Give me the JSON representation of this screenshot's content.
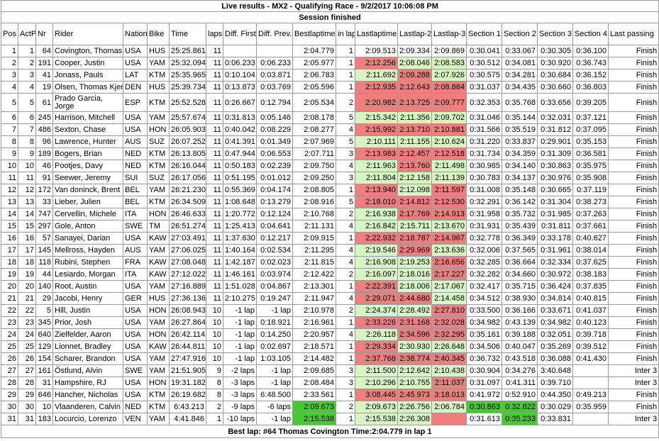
{
  "title": "Live results - MX2 - Qualifying Race - 9/2/2017 10:06:08 PM",
  "status": "Session finished",
  "footer": "Best lap: #64 Thomas Covington Time:2:04.779 in lap 1",
  "colors": {
    "red": "#ef7f7f",
    "green": "#d8f5c4",
    "dark_green": "#44cc2e"
  },
  "columns": [
    "Pos",
    "ActP",
    "Nr",
    "Rider",
    "Nation",
    "Bike",
    "Time",
    "laps",
    "Diff. First",
    "Diff. Prev.",
    "Bestlaptime",
    "in lap",
    "Lastlaptime",
    "Lastlap-2",
    "Lastlap-3",
    "Section 1",
    "Section 2",
    "Section 3",
    "Section 4",
    "Last passing"
  ],
  "rows": [
    {
      "c": [
        "1",
        "1",
        "64",
        "Covington, Thomas",
        "USA",
        "HUS",
        "25:25.861",
        "11",
        "",
        "",
        "2:04.779",
        "1",
        "2:09.513",
        "2:09.334",
        "2:09.869",
        "0:30.041",
        "0:33.067",
        "0:30.305",
        "0:36.100",
        "Finish"
      ],
      "k": {}
    },
    {
      "c": [
        "2",
        "2",
        "191",
        "Cooper, Justin",
        "USA",
        "YAM",
        "25:32.094",
        "11",
        "0:06.233",
        "0:06.233",
        "2:05.977",
        "1",
        "2:12.256",
        "2:08.046",
        "2:08.583",
        "0:30.512",
        "0:34.081",
        "0:30.920",
        "0:36.743",
        "Finish"
      ],
      "k": {
        "12": "red",
        "13": "green",
        "14": "green"
      }
    },
    {
      "c": [
        "3",
        "3",
        "41",
        "Jonass, Pauls",
        "LAT",
        "KTM",
        "25:35.965",
        "11",
        "0:10.104",
        "0:03.871",
        "2:06.783",
        "1",
        "2:11.692",
        "2:09.288",
        "2:07.926",
        "0:30.575",
        "0:34.281",
        "0:30.684",
        "0:36.152",
        "Finish"
      ],
      "k": {
        "12": "green",
        "13": "red",
        "14": "green"
      }
    },
    {
      "c": [
        "4",
        "4",
        "19",
        "Olsen, Thomas Kjer",
        "DEN",
        "HUS",
        "25:39.734",
        "11",
        "0:13.873",
        "0:03.769",
        "2:05.596",
        "1",
        "2:12.935",
        "2:12.643",
        "2:08.884",
        "0:31.037",
        "0:34.435",
        "0:30.660",
        "0:36.803",
        "Finish"
      ],
      "k": {
        "12": "red",
        "13": "red",
        "14": "red"
      }
    },
    {
      "c": [
        "5",
        "5",
        "61",
        "Prado Garcia, Jorge",
        "ESP",
        "KTM",
        "25:52.528",
        "11",
        "0:26.667",
        "0:12.794",
        "2:05.534",
        "2",
        "2:20.982",
        "2:13.725",
        "2:09.777",
        "0:32.353",
        "0:35.768",
        "0:33.656",
        "0:39.205",
        "Finish"
      ],
      "k": {
        "12": "red",
        "13": "red",
        "14": "red"
      },
      "tall": true
    },
    {
      "c": [
        "6",
        "6",
        "245",
        "Harrison, Mitchell",
        "USA",
        "YAM",
        "25:57.674",
        "11",
        "0:31.813",
        "0:05.146",
        "2:08.178",
        "5",
        "2:15.342",
        "2:11.356",
        "2:09.702",
        "0:31.046",
        "0:35.144",
        "0:32.031",
        "0:37.121",
        "Finish"
      ],
      "k": {
        "12": "green",
        "13": "green",
        "14": "green"
      }
    },
    {
      "c": [
        "7",
        "7",
        "486",
        "Sexton, Chase",
        "USA",
        "HON",
        "26:05.903",
        "11",
        "0:40.042",
        "0:08.229",
        "2:08.277",
        "4",
        "2:15.992",
        "2:13.710",
        "2:10.881",
        "0:31.566",
        "0:35.519",
        "0:31.812",
        "0:37.095",
        "Finish"
      ],
      "k": {
        "12": "red",
        "13": "red",
        "14": "red"
      }
    },
    {
      "c": [
        "8",
        "8",
        "96",
        "Lawrence, Hunter",
        "AUS",
        "SUZ",
        "26:07.252",
        "11",
        "0:41.391",
        "0:01.349",
        "2:07.969",
        "5",
        "2:10.111",
        "2:11.155",
        "2:10.624",
        "0:31.220",
        "0:33.837",
        "0:29.901",
        "0:35.153",
        "Finish"
      ],
      "k": {
        "12": "green",
        "13": "green",
        "14": "green"
      }
    },
    {
      "c": [
        "9",
        "9",
        "189",
        "Bogers, Brian",
        "NED",
        "KTM",
        "26:13.805",
        "11",
        "0:47.944",
        "0:06.553",
        "2:07.711",
        "3",
        "2:13.983",
        "2:12.457",
        "2:12.518",
        "0:31.734",
        "0:34.359",
        "0:31.309",
        "0:36.581",
        "Finish"
      ],
      "k": {
        "12": "red",
        "13": "red",
        "14": "red"
      }
    },
    {
      "c": [
        "10",
        "10",
        "46",
        "Pootjes, Davy",
        "NED",
        "KTM",
        "26:16.044",
        "11",
        "0:50.183",
        "0:02.239",
        "2:09.750",
        "4",
        "2:11.963",
        "2:13.760",
        "2:11.498",
        "0:30.985",
        "0:34.140",
        "0:30.863",
        "0:35.975",
        "Finish"
      ],
      "k": {
        "12": "green",
        "13": "red",
        "14": "green"
      }
    },
    {
      "c": [
        "11",
        "11",
        "91",
        "Seewer, Jeremy",
        "SUI",
        "SUZ",
        "26:17.056",
        "11",
        "0:51.195",
        "0:01.012",
        "2:09.250",
        "3",
        "2:11.804",
        "2:12.158",
        "2:11.139",
        "0:30.783",
        "0:34.137",
        "0:30.976",
        "0:35.908",
        "Finish"
      ],
      "k": {
        "12": "green",
        "13": "green",
        "14": "green"
      }
    },
    {
      "c": [
        "12",
        "12",
        "172",
        "Van doninck, Brent",
        "BEL",
        "YAM",
        "26:21.230",
        "11",
        "0:55.369",
        "0:04.174",
        "2:08.805",
        "1",
        "2:13.940",
        "2:12.098",
        "2:11.597",
        "0:31.008",
        "0:35.148",
        "0:30.665",
        "0:37.119",
        "Finish"
      ],
      "k": {
        "12": "red",
        "13": "green",
        "14": "red"
      }
    },
    {
      "c": [
        "13",
        "13",
        "33",
        "Lieber, Julien",
        "BEL",
        "KTM",
        "26:34.509",
        "11",
        "1:08.648",
        "0:13.279",
        "2:08.916",
        "5",
        "2:18.010",
        "2:14.812",
        "2:12.530",
        "0:32.291",
        "0:36.142",
        "0:31.304",
        "0:38.273",
        "Finish"
      ],
      "k": {
        "12": "red",
        "13": "red",
        "14": "red"
      }
    },
    {
      "c": [
        "14",
        "14",
        "747",
        "Cervellin, Michele",
        "ITA",
        "HON",
        "26:46.633",
        "11",
        "1:20.772",
        "0:12.124",
        "2:10.768",
        "2",
        "2:16.938",
        "2:17.769",
        "2:14.913",
        "0:31.958",
        "0:35.732",
        "0:31.985",
        "0:37.263",
        "Finish"
      ],
      "k": {
        "12": "green",
        "13": "red",
        "14": "red"
      }
    },
    {
      "c": [
        "15",
        "15",
        "297",
        "Gole, Anton",
        "SWE",
        "TM",
        "26:51.274",
        "11",
        "1:25.413",
        "0:04.641",
        "2:11.131",
        "4",
        "2:16.842",
        "2:15.711",
        "2:13.670",
        "0:31.931",
        "0:35.439",
        "0:31.811",
        "0:37.661",
        "Finish"
      ],
      "k": {
        "12": "green",
        "13": "green",
        "14": "green"
      }
    },
    {
      "c": [
        "16",
        "16",
        "57",
        "Sanayei, Darian",
        "USA",
        "KAW",
        "27:03.491",
        "11",
        "1:37.630",
        "0:12.217",
        "2:09.915",
        "1",
        "2:22.932",
        "2:18.787",
        "2:14.967",
        "0:32.778",
        "0:36.349",
        "0:33.178",
        "0:40.627",
        "Finish"
      ],
      "k": {
        "12": "red",
        "13": "red",
        "14": "red"
      }
    },
    {
      "c": [
        "17",
        "17",
        "145",
        "Mellross, Hayden",
        "AUS",
        "YAM",
        "27:06.025",
        "11",
        "1:40.164",
        "0:02.534",
        "2:11.295",
        "4",
        "2:19.546",
        "2:29.969",
        "2:13.636",
        "0:32.006",
        "0:37.565",
        "0:31.961",
        "0:38.014",
        "Finish"
      ],
      "k": {
        "12": "green",
        "13": "red",
        "14": "green"
      }
    },
    {
      "c": [
        "18",
        "18",
        "118",
        "Rubini, Stephen",
        "FRA",
        "KAW",
        "27:08.048",
        "11",
        "1:42.187",
        "0:02.023",
        "2:11.815",
        "4",
        "2:16.908",
        "2:19.253",
        "2:16.656",
        "0:32.285",
        "0:36.664",
        "0:32.334",
        "0:37.625",
        "Finish"
      ],
      "k": {
        "12": "green",
        "13": "green",
        "14": "red"
      }
    },
    {
      "c": [
        "19",
        "19",
        "44",
        "Lesiardo, Morgan",
        "ITA",
        "KAW",
        "27:12.022",
        "11",
        "1:46.161",
        "0:03.974",
        "2:12.422",
        "2",
        "2:16.097",
        "2:18.016",
        "2:17.227",
        "0:32.282",
        "0:34.660",
        "0:30.972",
        "0:38.183",
        "Finish"
      ],
      "k": {
        "12": "green",
        "13": "green",
        "14": "red"
      }
    },
    {
      "c": [
        "20",
        "20",
        "140",
        "Root, Austin",
        "USA",
        "YAM",
        "27:16.889",
        "11",
        "1:51.028",
        "0:04.867",
        "2:13.301",
        "1",
        "2:22.391",
        "2:18.006",
        "2:17.067",
        "0:32.417",
        "0:35.715",
        "0:36.424",
        "0:37.835",
        "Finish"
      ],
      "k": {
        "12": "red",
        "13": "green",
        "14": "green"
      }
    },
    {
      "c": [
        "21",
        "21",
        "29",
        "Jacobi, Henry",
        "GER",
        "HUS",
        "27:36.136",
        "11",
        "2:10.275",
        "0:19.247",
        "2:11.947",
        "4",
        "2:29.071",
        "2:44.680",
        "2:14.458",
        "0:34.512",
        "0:38.930",
        "0:34.814",
        "0:40.815",
        "Finish"
      ],
      "k": {
        "12": "red",
        "13": "red",
        "14": "green"
      }
    },
    {
      "c": [
        "22",
        "22",
        "5",
        "Hill, Justin",
        "USA",
        "HON",
        "26:08.943",
        "10",
        "-1 lap",
        "-1 lap",
        "2:10.978",
        "2",
        "2:24.374",
        "2:28.492",
        "2:27.810",
        "0:33.500",
        "0:36.166",
        "0:33.671",
        "0:41.037",
        "Finish"
      ],
      "k": {
        "12": "green",
        "13": "green",
        "14": "red"
      }
    },
    {
      "c": [
        "23",
        "23",
        "345",
        "Prior, Josh",
        "USA",
        "YAM",
        "26:27.864",
        "10",
        "-1 lap",
        "0:18.921",
        "2:16.961",
        "1",
        "2:33.226",
        "2:31.168",
        "2:32.028",
        "0:34.982",
        "0:43.139",
        "0:34.982",
        "0:40.123",
        "Finish"
      ],
      "k": {
        "12": "red",
        "13": "red",
        "14": "red"
      }
    },
    {
      "c": [
        "24",
        "24",
        "640",
        "Zielfelder, Aaron",
        "USA",
        "HON",
        "26:42.114",
        "10",
        "-1 lap",
        "0:14.250",
        "2:20.957",
        "4",
        "2:26.118",
        "2:34.596",
        "2:32.295",
        "0:35.161",
        "0:39.188",
        "0:32.051",
        "0:39.718",
        "Finish"
      ],
      "k": {
        "12": "green",
        "13": "red",
        "14": "red"
      }
    },
    {
      "c": [
        "25",
        "25",
        "129",
        "Lionnet, Bradley",
        "USA",
        "KAW",
        "26:44.811",
        "10",
        "-1 lap",
        "0:02.697",
        "2:18.571",
        "1",
        "2:29.334",
        "2:30.930",
        "2:26.648",
        "0:34.506",
        "0:40.047",
        "0:35.269",
        "0:39.512",
        "Finish"
      ],
      "k": {
        "12": "red",
        "13": "green",
        "14": "green"
      }
    },
    {
      "c": [
        "26",
        "26",
        "154",
        "Scharer, Brandon",
        "USA",
        "YAM",
        "27:47.916",
        "10",
        "-1 lap",
        "1:03.105",
        "2:14.482",
        "1",
        "2:37.768",
        "2:38.774",
        "2:40.345",
        "0:36.732",
        "0:43.518",
        "0:36.088",
        "0:41.430",
        "Finish"
      ],
      "k": {
        "12": "red",
        "13": "red",
        "14": "red"
      }
    },
    {
      "c": [
        "27",
        "27",
        "161",
        "Östlund, Alvin",
        "SWE",
        "YAM",
        "21:51.905",
        "9",
        "-2 laps",
        "-1 lap",
        "2:09.685",
        "3",
        "2:11.500",
        "2:12.642",
        "2:10.438",
        "0:30.904",
        "0:34.276",
        "3:40.648",
        "",
        "Inter 3"
      ],
      "k": {
        "12": "green",
        "13": "green",
        "14": "green"
      }
    },
    {
      "c": [
        "28",
        "28",
        "31",
        "Hampshire, RJ",
        "USA",
        "HON",
        "19:31.182",
        "8",
        "-3 laps",
        "-1 lap",
        "2:08.484",
        "3",
        "2:10.296",
        "2:10.755",
        "2:11.037",
        "0:31.097",
        "0:41.311",
        "0:39.710",
        "",
        "Inter 3"
      ],
      "k": {
        "12": "green",
        "13": "green",
        "14": "red"
      }
    },
    {
      "c": [
        "29",
        "29",
        "646",
        "Hancher, Nicholas",
        "USA",
        "KTM",
        "26:19.682",
        "8",
        "-3 laps",
        "6:48.500",
        "2:33.561",
        "1",
        "3:08.445",
        "2:45.973",
        "3:18.013",
        "0:41.972",
        "0:52.910",
        "0:44.350",
        "0:49.213",
        "Finish"
      ],
      "k": {
        "12": "red",
        "13": "red",
        "14": "red"
      }
    },
    {
      "c": [
        "30",
        "30",
        "10",
        "Vlaanderen, Calvin",
        "NED",
        "KTM",
        "6:43.213",
        "2",
        "-9 laps",
        "-6 laps",
        "2:09.673",
        "2",
        "2:09.673",
        "2:26.756",
        "2:06.784",
        "0:30.863",
        "0:32.822",
        "0:30.029",
        "0:35.959",
        "Finish"
      ],
      "k": {
        "10": "dgreen",
        "12": "green",
        "13": "green",
        "14": "green",
        "15": "dgreen",
        "16": "dgreen"
      }
    },
    {
      "c": [
        "31",
        "31",
        "183",
        "Locurcio, Lorenzo",
        "VEN",
        "YAM",
        "4:41.846",
        "1",
        "-10 laps",
        "-1 lap",
        "2:15.538",
        "1",
        "2:15.538",
        "2:26.308",
        "",
        "0:31.613",
        "0:35.233",
        "0:33.831",
        "",
        "Inter 3"
      ],
      "k": {
        "10": "dgreen",
        "12": "green",
        "13": "green",
        "14": "red",
        "16": "dgreen"
      }
    }
  ]
}
